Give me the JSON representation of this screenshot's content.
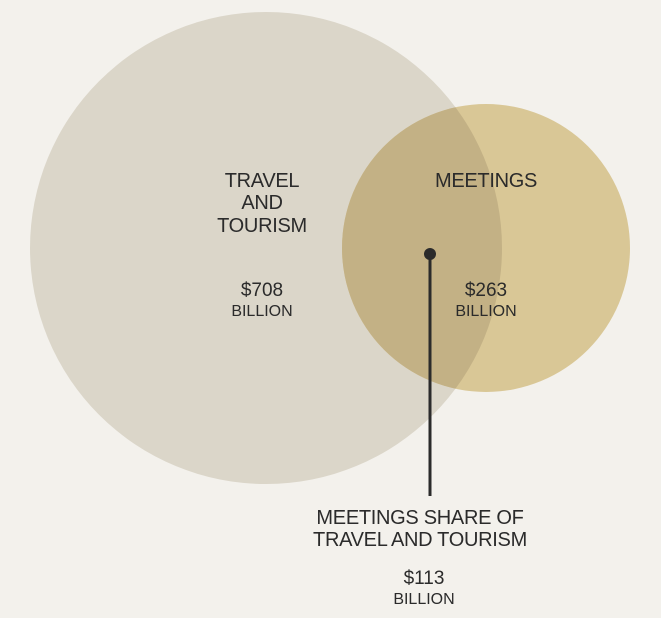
{
  "colors": {
    "background": "#f3f1ec",
    "travel_circle": "#dbd6c9",
    "meetings_circle": "#d9c796",
    "overlap": "#c3b185",
    "pointer": "#2b2b2b"
  },
  "travel": {
    "title_lines": [
      "TRAVEL",
      "AND",
      "TOURISM"
    ],
    "amount": "$708",
    "unit": "BILLION"
  },
  "meetings": {
    "title": "MEETINGS",
    "amount": "$263",
    "unit": "BILLION"
  },
  "overlap": {
    "title_lines": [
      "MEETINGS SHARE OF",
      "TRAVEL AND TOURISM"
    ],
    "amount": "$113",
    "unit": "BILLION"
  }
}
